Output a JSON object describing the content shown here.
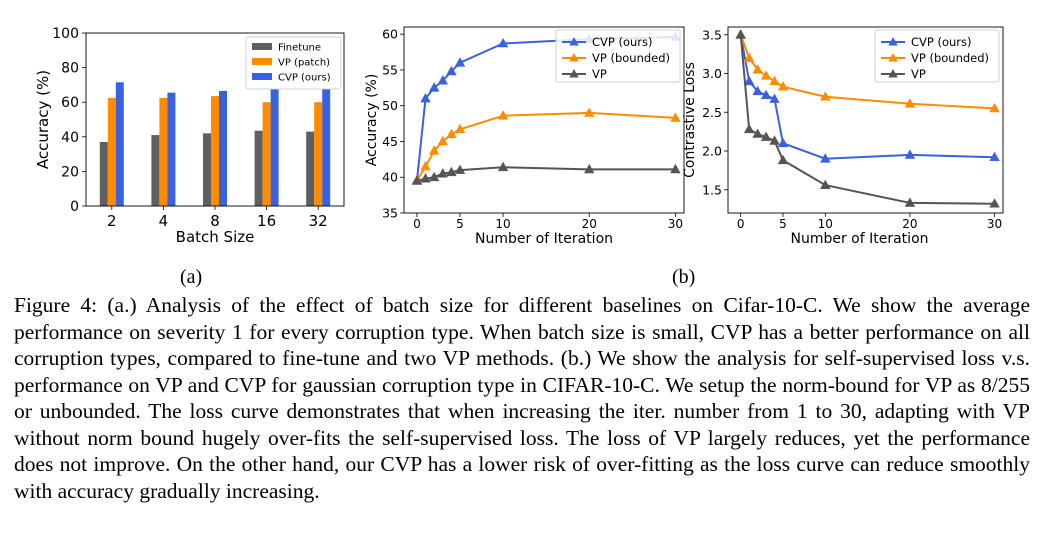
{
  "chart_data": [
    {
      "type": "bar",
      "ylabel": "Accuracy (%)",
      "xlabel": "Batch Size",
      "categories": [
        "2",
        "4",
        "8",
        "16",
        "32"
      ],
      "ylim": [
        0,
        100
      ],
      "yticks": [
        0,
        20,
        40,
        60,
        80,
        100
      ],
      "series": [
        {
          "name": "Finetune",
          "color": "#5f5f5f",
          "values": [
            37,
            41,
            42,
            43.5,
            43
          ]
        },
        {
          "name": "VP (patch)",
          "color": "#ff8c00",
          "values": [
            62.5,
            62.5,
            63.5,
            60,
            60
          ]
        },
        {
          "name": "CVP (ours)",
          "color": "#3a62e0",
          "values": [
            71.5,
            65.5,
            66.5,
            68,
            68
          ]
        }
      ],
      "legend": "top-right",
      "sublabel": "(a)"
    },
    {
      "type": "line",
      "ylabel": "Accuracy (%)",
      "xlabel": "Number of Iteration",
      "xlim": [
        -1.5,
        31
      ],
      "ylim": [
        35,
        61
      ],
      "xticks": [
        0,
        5,
        10,
        20,
        30
      ],
      "yticks": [
        35,
        40,
        45,
        50,
        55,
        60
      ],
      "series": [
        {
          "name": "CVP (ours)",
          "color": "#3a62e0",
          "x": [
            0,
            1,
            2,
            3,
            4,
            5,
            10,
            20,
            30
          ],
          "y": [
            39.5,
            51,
            52.5,
            53.5,
            54.8,
            56,
            58.7,
            59.3,
            59.6
          ]
        },
        {
          "name": "VP (bounded)",
          "color": "#ff8c00",
          "x": [
            0,
            1,
            2,
            3,
            4,
            5,
            10,
            20,
            30
          ],
          "y": [
            39.5,
            41.5,
            43.7,
            45,
            46,
            46.7,
            48.6,
            49,
            48.3
          ]
        },
        {
          "name": "VP",
          "color": "#555555",
          "x": [
            0,
            1,
            2,
            3,
            4,
            5,
            10,
            20,
            30
          ],
          "y": [
            39.5,
            39.8,
            40,
            40.5,
            40.7,
            41,
            41.4,
            41.1,
            41.1
          ]
        }
      ],
      "legend": "top-right"
    },
    {
      "type": "line",
      "ylabel": "Contrastive Loss",
      "xlabel": "Number of Iteration",
      "xlim": [
        -1.5,
        31
      ],
      "ylim": [
        1.2,
        3.6
      ],
      "xticks": [
        0,
        5,
        10,
        20,
        30
      ],
      "xticklabels": [
        "0",
        "5",
        "10",
        "20",
        "30"
      ],
      "yticks": [
        1.5,
        2.0,
        2.5,
        3.0,
        3.5
      ],
      "yticklabels": [
        "1.5",
        "2.0",
        "2.5",
        "3.0",
        "3.5"
      ],
      "series": [
        {
          "name": "CVP (ours)",
          "color": "#3a62e0",
          "x": [
            0,
            1,
            2,
            3,
            4,
            5,
            10,
            20,
            30
          ],
          "y": [
            3.5,
            2.9,
            2.77,
            2.72,
            2.67,
            2.1,
            1.9,
            1.95,
            1.92
          ]
        },
        {
          "name": "VP (bounded)",
          "color": "#ff8c00",
          "x": [
            0,
            1,
            2,
            3,
            4,
            5,
            10,
            20,
            30
          ],
          "y": [
            3.5,
            3.2,
            3.05,
            2.97,
            2.9,
            2.83,
            2.7,
            2.61,
            2.55
          ]
        },
        {
          "name": "VP",
          "color": "#555555",
          "x": [
            0,
            1,
            2,
            3,
            4,
            5,
            10,
            20,
            30
          ],
          "y": [
            3.5,
            2.28,
            2.22,
            2.18,
            2.13,
            1.88,
            1.56,
            1.33,
            1.32
          ]
        }
      ],
      "legend": "top-right",
      "sublabel": "(b)"
    }
  ],
  "caption": "Figure 4: (a.) Analysis of the effect of batch size for different baselines on Cifar-10-C. We show the average performance on severity 1 for every corruption type. When batch size is small, CVP has a better performance on all corruption types, compared to fine-tune and two VP methods. (b.) We show the analysis for self-supervised loss v.s. performance on VP and CVP for gaussian corruption type in CIFAR-10-C. We setup the norm-bound for VP as 8/255 or unbounded. The loss curve demonstrates that when increasing the iter. number from 1 to 30, adapting with VP without norm bound hugely over-fits the self-supervised loss. The loss of VP largely reduces, yet the performance does not improve. On the other hand, our CVP has a lower risk of over-fitting as the loss curve can reduce smoothly with accuracy gradually increasing."
}
